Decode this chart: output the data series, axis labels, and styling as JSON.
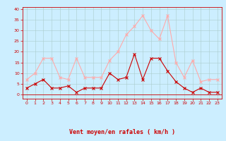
{
  "x": [
    0,
    1,
    2,
    3,
    4,
    5,
    6,
    7,
    8,
    9,
    10,
    11,
    12,
    13,
    14,
    15,
    16,
    17,
    18,
    19,
    20,
    21,
    22,
    23
  ],
  "avg_wind": [
    3,
    5,
    7,
    3,
    3,
    4,
    1,
    3,
    3,
    3,
    10,
    7,
    8,
    19,
    7,
    17,
    17,
    11,
    6,
    3,
    1,
    3,
    1,
    1
  ],
  "gust_wind": [
    7,
    10,
    17,
    17,
    8,
    7,
    17,
    8,
    8,
    8,
    16,
    20,
    28,
    32,
    37,
    30,
    26,
    37,
    15,
    8,
    16,
    6,
    7,
    7
  ],
  "xlabel": "Vent moyen/en rafales ( km/h )",
  "yticks": [
    0,
    5,
    10,
    15,
    20,
    25,
    30,
    35,
    40
  ],
  "xticks": [
    0,
    1,
    2,
    3,
    4,
    5,
    6,
    7,
    8,
    9,
    10,
    11,
    12,
    13,
    14,
    15,
    16,
    17,
    18,
    19,
    20,
    21,
    22,
    23
  ],
  "avg_color": "#cc0000",
  "gust_color": "#ffaaaa",
  "bg_color": "#cceeff",
  "grid_color": "#aacccc",
  "axis_color": "#cc0000",
  "xlabel_color": "#cc0000",
  "tick_color": "#cc0000",
  "ylim": [
    -2,
    41
  ],
  "xlim": [
    -0.5,
    23.5
  ]
}
